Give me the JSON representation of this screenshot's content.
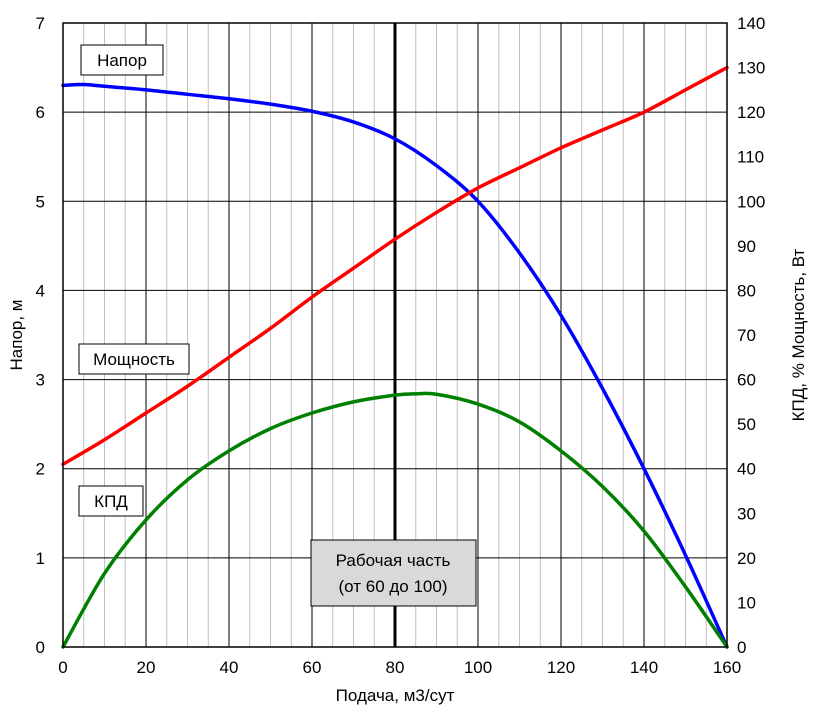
{
  "chart_data": {
    "type": "line",
    "xlabel": "Подача, м3/сут",
    "ylabel_left": "Напор, м",
    "ylabel_right": "КПД, %  Мощность, Вт",
    "xlim": [
      0,
      160
    ],
    "ylim_left": [
      0,
      7
    ],
    "ylim_right": [
      0,
      140
    ],
    "x_ticks": [
      0,
      20,
      40,
      60,
      80,
      100,
      120,
      140,
      160
    ],
    "y_left_ticks": [
      0,
      1,
      2,
      3,
      4,
      5,
      6,
      7
    ],
    "y_right_ticks": [
      0,
      10,
      20,
      30,
      40,
      50,
      60,
      70,
      80,
      90,
      100,
      110,
      120,
      130,
      140
    ],
    "grid": true,
    "minor_x_step": 5,
    "series": [
      {
        "name": "Напор",
        "axis": "left",
        "color": "#0000ff",
        "x": [
          0,
          5,
          10,
          20,
          30,
          40,
          50,
          60,
          70,
          80,
          90,
          100,
          110,
          120,
          130,
          140,
          150,
          160
        ],
        "y": [
          6.3,
          6.31,
          6.29,
          6.25,
          6.2,
          6.15,
          6.09,
          6.01,
          5.89,
          5.7,
          5.4,
          5.0,
          4.42,
          3.72,
          2.9,
          2.0,
          1.03,
          0.0
        ]
      },
      {
        "name": "Мощность",
        "axis": "right",
        "color": "#ff0000",
        "x": [
          0,
          10,
          20,
          30,
          40,
          50,
          60,
          70,
          80,
          90,
          100,
          110,
          120,
          130,
          140,
          150,
          160
        ],
        "y": [
          41,
          46.5,
          52.5,
          58.5,
          65,
          71.5,
          78.5,
          85,
          91.5,
          97.5,
          103,
          107.5,
          112,
          116,
          120,
          125,
          130
        ]
      },
      {
        "name": "КПД",
        "axis": "right",
        "color": "#008000",
        "x": [
          0,
          10,
          20,
          30,
          40,
          50,
          60,
          70,
          80,
          85,
          90,
          100,
          110,
          120,
          130,
          140,
          150,
          160
        ],
        "y": [
          0,
          16.5,
          28.5,
          37.5,
          44,
          49,
          52.5,
          55,
          56.5,
          56.8,
          56.7,
          54.5,
          50.5,
          44,
          36,
          26,
          13.5,
          0
        ]
      }
    ],
    "vertical_line_x": 80,
    "annotations": {
      "head_label": "Напор",
      "power_label": "Мощность",
      "efficiency_label": "КПД",
      "work_range_line1": "Рабочая часть",
      "work_range_line2": "(от 60 до 100)"
    }
  }
}
